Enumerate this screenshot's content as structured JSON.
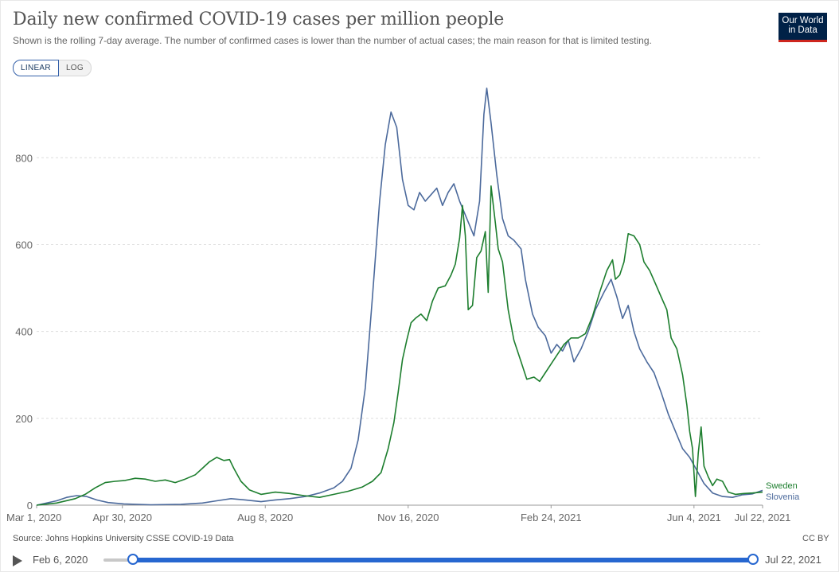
{
  "header": {
    "title": "Daily new confirmed COVID-19 cases per million people",
    "subtitle": "Shown is the rolling 7-day average. The number of confirmed cases is lower than the number of actual cases; the main reason for that is limited testing.",
    "logo_line1": "Our World",
    "logo_line2": "in Data"
  },
  "scale_toggle": {
    "linear_label": "LINEAR",
    "log_label": "LOG",
    "selected": "LINEAR"
  },
  "footer": {
    "source": "Source: Johns Hopkins University CSSE COVID-19 Data",
    "license": "CC BY"
  },
  "timeline": {
    "start_label": "Feb 6, 2020",
    "end_label": "Jul 22, 2021"
  },
  "colors": {
    "sweden": "#1d7e2e",
    "slovenia": "#4c6a9c",
    "grid": "#dddddd",
    "axis": "#666666",
    "accent": "#2767d0"
  },
  "chart_data": {
    "type": "line",
    "title": "Daily new confirmed COVID-19 cases per million people",
    "x_start": "2020-03-01",
    "x_end": "2021-07-22",
    "x_tick_labels": [
      "Mar 1, 2020",
      "Apr 30, 2020",
      "Aug 8, 2020",
      "Nov 16, 2020",
      "Feb 24, 2021",
      "Jun 4, 2021",
      "Jul 22, 2021"
    ],
    "x_tick_dates": [
      "2020-03-01",
      "2020-04-30",
      "2020-08-08",
      "2020-11-16",
      "2021-02-24",
      "2021-06-04",
      "2021-07-22"
    ],
    "y_ticks": [
      0,
      200,
      400,
      600,
      800
    ],
    "ylim": [
      0,
      980
    ],
    "grid": true,
    "legend": "end-labels",
    "series": [
      {
        "name": "Sweden",
        "points": [
          [
            "2020-03-01",
            0
          ],
          [
            "2020-03-15",
            5
          ],
          [
            "2020-03-28",
            15
          ],
          [
            "2020-04-04",
            25
          ],
          [
            "2020-04-11",
            40
          ],
          [
            "2020-04-18",
            52
          ],
          [
            "2020-04-25",
            55
          ],
          [
            "2020-05-02",
            57
          ],
          [
            "2020-05-09",
            62
          ],
          [
            "2020-05-16",
            60
          ],
          [
            "2020-05-23",
            55
          ],
          [
            "2020-05-30",
            58
          ],
          [
            "2020-06-06",
            52
          ],
          [
            "2020-06-13",
            60
          ],
          [
            "2020-06-20",
            70
          ],
          [
            "2020-06-25",
            85
          ],
          [
            "2020-06-30",
            100
          ],
          [
            "2020-07-05",
            110
          ],
          [
            "2020-07-10",
            103
          ],
          [
            "2020-07-14",
            105
          ],
          [
            "2020-07-17",
            85
          ],
          [
            "2020-07-22",
            55
          ],
          [
            "2020-07-28",
            35
          ],
          [
            "2020-08-05",
            25
          ],
          [
            "2020-08-15",
            30
          ],
          [
            "2020-08-25",
            27
          ],
          [
            "2020-09-04",
            22
          ],
          [
            "2020-09-15",
            18
          ],
          [
            "2020-09-25",
            25
          ],
          [
            "2020-10-05",
            32
          ],
          [
            "2020-10-15",
            42
          ],
          [
            "2020-10-22",
            55
          ],
          [
            "2020-10-28",
            75
          ],
          [
            "2020-11-02",
            130
          ],
          [
            "2020-11-06",
            190
          ],
          [
            "2020-11-09",
            260
          ],
          [
            "2020-11-12",
            335
          ],
          [
            "2020-11-15",
            380
          ],
          [
            "2020-11-18",
            420
          ],
          [
            "2020-11-21",
            430
          ],
          [
            "2020-11-25",
            440
          ],
          [
            "2020-11-29",
            425
          ],
          [
            "2020-12-03",
            470
          ],
          [
            "2020-12-07",
            500
          ],
          [
            "2020-12-12",
            505
          ],
          [
            "2020-12-16",
            530
          ],
          [
            "2020-12-19",
            555
          ],
          [
            "2020-12-22",
            615
          ],
          [
            "2020-12-24",
            690
          ],
          [
            "2020-12-26",
            620
          ],
          [
            "2020-12-28",
            450
          ],
          [
            "2020-12-31",
            460
          ],
          [
            "2021-01-03",
            570
          ],
          [
            "2021-01-06",
            585
          ],
          [
            "2021-01-09",
            630
          ],
          [
            "2021-01-11",
            490
          ],
          [
            "2021-01-13",
            735
          ],
          [
            "2021-01-16",
            650
          ],
          [
            "2021-01-18",
            590
          ],
          [
            "2021-01-21",
            560
          ],
          [
            "2021-01-25",
            450
          ],
          [
            "2021-01-29",
            380
          ],
          [
            "2021-02-03",
            330
          ],
          [
            "2021-02-07",
            290
          ],
          [
            "2021-02-12",
            295
          ],
          [
            "2021-02-16",
            285
          ],
          [
            "2021-02-20",
            305
          ],
          [
            "2021-02-25",
            330
          ],
          [
            "2021-03-01",
            350
          ],
          [
            "2021-03-05",
            370
          ],
          [
            "2021-03-10",
            385
          ],
          [
            "2021-03-15",
            385
          ],
          [
            "2021-03-20",
            395
          ],
          [
            "2021-03-25",
            435
          ],
          [
            "2021-03-30",
            490
          ],
          [
            "2021-04-04",
            540
          ],
          [
            "2021-04-08",
            565
          ],
          [
            "2021-04-10",
            520
          ],
          [
            "2021-04-13",
            530
          ],
          [
            "2021-04-16",
            560
          ],
          [
            "2021-04-19",
            625
          ],
          [
            "2021-04-23",
            620
          ],
          [
            "2021-04-27",
            600
          ],
          [
            "2021-04-30",
            560
          ],
          [
            "2021-05-04",
            540
          ],
          [
            "2021-05-08",
            510
          ],
          [
            "2021-05-12",
            480
          ],
          [
            "2021-05-16",
            450
          ],
          [
            "2021-05-19",
            385
          ],
          [
            "2021-05-23",
            360
          ],
          [
            "2021-05-27",
            300
          ],
          [
            "2021-05-30",
            230
          ],
          [
            "2021-06-01",
            170
          ],
          [
            "2021-06-03",
            130
          ],
          [
            "2021-06-05",
            20
          ],
          [
            "2021-06-07",
            120
          ],
          [
            "2021-06-09",
            180
          ],
          [
            "2021-06-11",
            90
          ],
          [
            "2021-06-14",
            65
          ],
          [
            "2021-06-17",
            45
          ],
          [
            "2021-06-20",
            60
          ],
          [
            "2021-06-24",
            55
          ],
          [
            "2021-06-28",
            30
          ],
          [
            "2021-07-03",
            25
          ],
          [
            "2021-07-09",
            27
          ],
          [
            "2021-07-15",
            28
          ],
          [
            "2021-07-22",
            30
          ]
        ]
      },
      {
        "name": "Slovenia",
        "points": [
          [
            "2020-03-01",
            0
          ],
          [
            "2020-03-15",
            10
          ],
          [
            "2020-03-22",
            18
          ],
          [
            "2020-03-29",
            22
          ],
          [
            "2020-04-05",
            20
          ],
          [
            "2020-04-12",
            12
          ],
          [
            "2020-04-20",
            6
          ],
          [
            "2020-05-01",
            3
          ],
          [
            "2020-05-20",
            1
          ],
          [
            "2020-06-10",
            2
          ],
          [
            "2020-06-25",
            5
          ],
          [
            "2020-07-05",
            10
          ],
          [
            "2020-07-15",
            15
          ],
          [
            "2020-07-25",
            12
          ],
          [
            "2020-08-05",
            8
          ],
          [
            "2020-08-15",
            12
          ],
          [
            "2020-08-25",
            15
          ],
          [
            "2020-09-05",
            20
          ],
          [
            "2020-09-15",
            28
          ],
          [
            "2020-09-25",
            40
          ],
          [
            "2020-10-01",
            55
          ],
          [
            "2020-10-07",
            85
          ],
          [
            "2020-10-12",
            150
          ],
          [
            "2020-10-17",
            270
          ],
          [
            "2020-10-22",
            480
          ],
          [
            "2020-10-27",
            700
          ],
          [
            "2020-10-31",
            830
          ],
          [
            "2020-11-04",
            905
          ],
          [
            "2020-11-08",
            870
          ],
          [
            "2020-11-12",
            750
          ],
          [
            "2020-11-16",
            690
          ],
          [
            "2020-11-20",
            680
          ],
          [
            "2020-11-24",
            720
          ],
          [
            "2020-11-28",
            700
          ],
          [
            "2020-12-02",
            715
          ],
          [
            "2020-12-06",
            730
          ],
          [
            "2020-12-10",
            690
          ],
          [
            "2020-12-14",
            720
          ],
          [
            "2020-12-18",
            740
          ],
          [
            "2020-12-22",
            700
          ],
          [
            "2020-12-27",
            660
          ],
          [
            "2021-01-01",
            620
          ],
          [
            "2021-01-05",
            700
          ],
          [
            "2021-01-08",
            900
          ],
          [
            "2021-01-10",
            960
          ],
          [
            "2021-01-13",
            880
          ],
          [
            "2021-01-17",
            760
          ],
          [
            "2021-01-21",
            660
          ],
          [
            "2021-01-25",
            620
          ],
          [
            "2021-01-29",
            610
          ],
          [
            "2021-02-03",
            590
          ],
          [
            "2021-02-06",
            520
          ],
          [
            "2021-02-11",
            440
          ],
          [
            "2021-02-15",
            410
          ],
          [
            "2021-02-20",
            390
          ],
          [
            "2021-02-24",
            350
          ],
          [
            "2021-02-28",
            370
          ],
          [
            "2021-03-04",
            355
          ],
          [
            "2021-03-08",
            380
          ],
          [
            "2021-03-12",
            330
          ],
          [
            "2021-03-17",
            360
          ],
          [
            "2021-03-22",
            400
          ],
          [
            "2021-03-27",
            450
          ],
          [
            "2021-04-02",
            490
          ],
          [
            "2021-04-07",
            520
          ],
          [
            "2021-04-11",
            480
          ],
          [
            "2021-04-15",
            430
          ],
          [
            "2021-04-19",
            460
          ],
          [
            "2021-04-23",
            400
          ],
          [
            "2021-04-27",
            360
          ],
          [
            "2021-05-02",
            330
          ],
          [
            "2021-05-07",
            305
          ],
          [
            "2021-05-12",
            260
          ],
          [
            "2021-05-17",
            210
          ],
          [
            "2021-05-22",
            170
          ],
          [
            "2021-05-27",
            130
          ],
          [
            "2021-06-01",
            110
          ],
          [
            "2021-06-06",
            80
          ],
          [
            "2021-06-11",
            50
          ],
          [
            "2021-06-17",
            28
          ],
          [
            "2021-06-24",
            20
          ],
          [
            "2021-07-01",
            18
          ],
          [
            "2021-07-08",
            24
          ],
          [
            "2021-07-15",
            26
          ],
          [
            "2021-07-22",
            34
          ]
        ]
      }
    ]
  }
}
